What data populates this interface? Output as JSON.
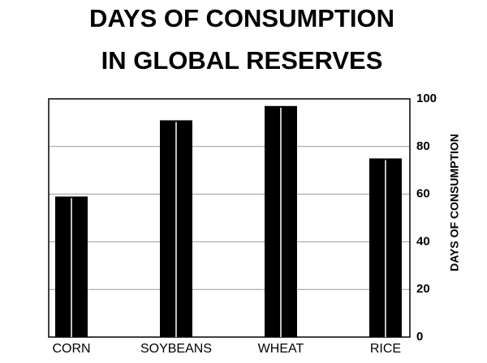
{
  "chart_data": {
    "type": "bar",
    "title": [
      "DAYS OF CONSUMPTION",
      "IN GLOBAL RESERVES"
    ],
    "y_axis_label": "DAYS OF CONSUMPTION",
    "categories": [
      "CORN",
      "SOYBEANS",
      "WHEAT",
      "RICE"
    ],
    "values": [
      59,
      91,
      97,
      75
    ],
    "color": "#000000",
    "ylim": [
      0,
      100
    ],
    "yticks": [
      0,
      20,
      40,
      60,
      80,
      100
    ],
    "y_axis_side": "right",
    "grid": true
  }
}
